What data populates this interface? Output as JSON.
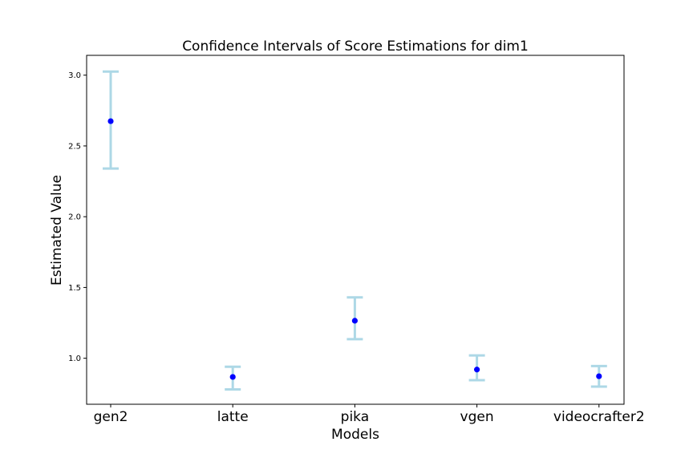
{
  "chart_data": {
    "type": "scatter",
    "title": "Confidence Intervals of Score Estimations for dim1",
    "xlabel": "Models",
    "ylabel": "Estimated Value",
    "categories": [
      "gen2",
      "latte",
      "pika",
      "vgen",
      "videocrafter2"
    ],
    "series": [
      {
        "values": [
          2.675,
          0.868,
          1.265,
          0.92,
          0.873
        ],
        "lower": [
          2.34,
          0.78,
          1.135,
          0.845,
          0.8
        ],
        "upper": [
          3.025,
          0.94,
          1.43,
          1.02,
          0.945
        ]
      }
    ],
    "yticks": [
      1.0,
      1.5,
      2.0,
      2.5,
      3.0
    ],
    "ytick_labels": [
      "1.0",
      "1.5",
      "2.0",
      "2.5",
      "3.0"
    ],
    "ylim": [
      0.675,
      3.14
    ],
    "grid": false,
    "point_color": "#0000ff",
    "errorbar_color": "#add8e6"
  }
}
